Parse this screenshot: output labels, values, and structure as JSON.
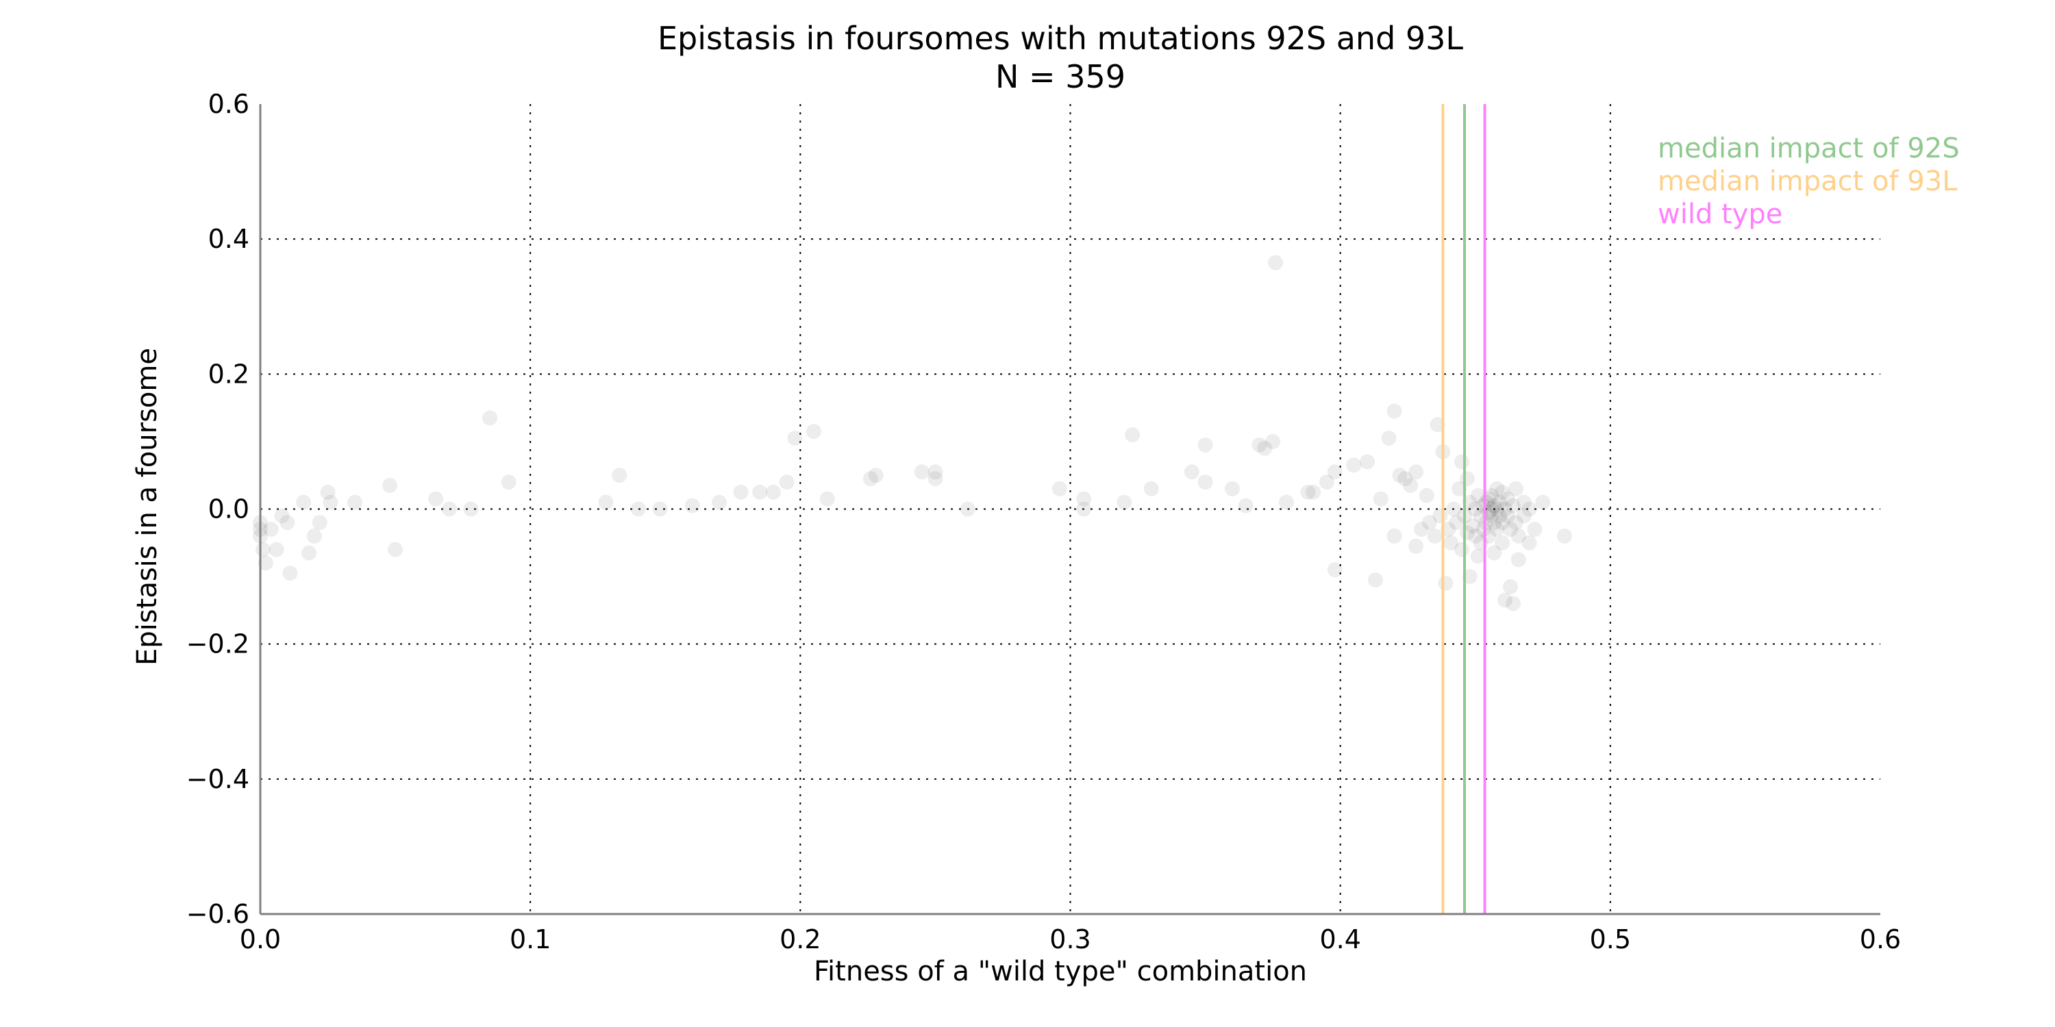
{
  "chart_data": {
    "type": "scatter",
    "title": "Epistasis in foursomes with mutations 92S and 93L",
    "subtitle": "N = 359",
    "xlabel": "Fitness of a \"wild type\" combination",
    "ylabel": "Epistasis in a foursome",
    "xlim": [
      0.0,
      0.6
    ],
    "ylim": [
      -0.6,
      0.6
    ],
    "x_ticks": [
      "0.0",
      "0.1",
      "0.2",
      "0.3",
      "0.4",
      "0.5",
      "0.6"
    ],
    "y_ticks": [
      "0.6",
      "0.4",
      "0.2",
      "0.0",
      "−0.2",
      "−0.4",
      "−0.6"
    ],
    "grid": true,
    "legend_position": "top-right",
    "vertical_lines": [
      {
        "name": "median impact of 92S",
        "x": 0.446,
        "color": "#8fc98f"
      },
      {
        "name": "median impact of 93L",
        "x": 0.438,
        "color": "#ffd08a"
      },
      {
        "name": "wild type",
        "x": 0.4535,
        "color": "#ff80ff"
      }
    ],
    "point_color": "#000000",
    "point_opacity": 0.07,
    "points": [
      [
        0.0,
        -0.03
      ],
      [
        0.0,
        -0.04
      ],
      [
        0.0,
        -0.02
      ],
      [
        0.001,
        -0.06
      ],
      [
        0.002,
        -0.08
      ],
      [
        0.004,
        -0.03
      ],
      [
        0.006,
        -0.06
      ],
      [
        0.008,
        -0.01
      ],
      [
        0.01,
        -0.02
      ],
      [
        0.011,
        -0.095
      ],
      [
        0.016,
        0.01
      ],
      [
        0.018,
        -0.065
      ],
      [
        0.02,
        -0.04
      ],
      [
        0.022,
        -0.02
      ],
      [
        0.025,
        0.025
      ],
      [
        0.026,
        0.01
      ],
      [
        0.035,
        0.01
      ],
      [
        0.048,
        0.035
      ],
      [
        0.05,
        -0.06
      ],
      [
        0.065,
        0.015
      ],
      [
        0.07,
        0.0
      ],
      [
        0.078,
        0.0
      ],
      [
        0.085,
        0.135
      ],
      [
        0.092,
        0.04
      ],
      [
        0.128,
        0.01
      ],
      [
        0.133,
        0.05
      ],
      [
        0.14,
        0.0
      ],
      [
        0.148,
        0.0
      ],
      [
        0.16,
        0.005
      ],
      [
        0.17,
        0.01
      ],
      [
        0.178,
        0.025
      ],
      [
        0.185,
        0.025
      ],
      [
        0.19,
        0.025
      ],
      [
        0.195,
        0.04
      ],
      [
        0.198,
        0.105
      ],
      [
        0.205,
        0.115
      ],
      [
        0.21,
        0.015
      ],
      [
        0.226,
        0.045
      ],
      [
        0.228,
        0.05
      ],
      [
        0.245,
        0.055
      ],
      [
        0.25,
        0.045
      ],
      [
        0.25,
        0.055
      ],
      [
        0.262,
        0.0
      ],
      [
        0.296,
        0.03
      ],
      [
        0.305,
        0.0
      ],
      [
        0.305,
        0.015
      ],
      [
        0.32,
        0.01
      ],
      [
        0.323,
        0.11
      ],
      [
        0.33,
        0.03
      ],
      [
        0.345,
        0.055
      ],
      [
        0.35,
        0.095
      ],
      [
        0.35,
        0.04
      ],
      [
        0.36,
        0.03
      ],
      [
        0.365,
        0.005
      ],
      [
        0.37,
        0.095
      ],
      [
        0.372,
        0.09
      ],
      [
        0.375,
        0.1
      ],
      [
        0.376,
        0.365
      ],
      [
        0.38,
        0.01
      ],
      [
        0.388,
        0.025
      ],
      [
        0.39,
        0.025
      ],
      [
        0.395,
        0.04
      ],
      [
        0.398,
        0.055
      ],
      [
        0.398,
        -0.09
      ],
      [
        0.405,
        0.065
      ],
      [
        0.41,
        0.07
      ],
      [
        0.413,
        -0.105
      ],
      [
        0.415,
        0.015
      ],
      [
        0.418,
        0.105
      ],
      [
        0.42,
        0.145
      ],
      [
        0.42,
        -0.04
      ],
      [
        0.422,
        0.05
      ],
      [
        0.424,
        0.045
      ],
      [
        0.426,
        0.035
      ],
      [
        0.428,
        0.055
      ],
      [
        0.428,
        -0.055
      ],
      [
        0.43,
        -0.03
      ],
      [
        0.432,
        0.02
      ],
      [
        0.433,
        -0.02
      ],
      [
        0.435,
        -0.04
      ],
      [
        0.436,
        0.125
      ],
      [
        0.437,
        -0.01
      ],
      [
        0.438,
        0.085
      ],
      [
        0.439,
        -0.11
      ],
      [
        0.44,
        -0.03
      ],
      [
        0.441,
        -0.05
      ],
      [
        0.442,
        0.0
      ],
      [
        0.443,
        -0.02
      ],
      [
        0.444,
        0.03
      ],
      [
        0.445,
        -0.06
      ],
      [
        0.445,
        0.07
      ],
      [
        0.446,
        -0.01
      ],
      [
        0.447,
        -0.035
      ],
      [
        0.447,
        0.045
      ],
      [
        0.448,
        -0.1
      ],
      [
        0.448,
        0.01
      ],
      [
        0.449,
        -0.025
      ],
      [
        0.45,
        -0.04
      ],
      [
        0.45,
        0.0
      ],
      [
        0.451,
        -0.07
      ],
      [
        0.451,
        0.02
      ],
      [
        0.452,
        -0.05
      ],
      [
        0.452,
        -0.01
      ],
      [
        0.453,
        0.005
      ],
      [
        0.453,
        -0.03
      ],
      [
        0.454,
        -0.02
      ],
      [
        0.454,
        0.01
      ],
      [
        0.455,
        -0.005
      ],
      [
        0.455,
        0.015
      ],
      [
        0.455,
        -0.04
      ],
      [
        0.456,
        0.0
      ],
      [
        0.456,
        -0.01
      ],
      [
        0.456,
        0.02
      ],
      [
        0.457,
        -0.02
      ],
      [
        0.457,
        0.005
      ],
      [
        0.457,
        -0.065
      ],
      [
        0.458,
        0.0
      ],
      [
        0.458,
        0.03
      ],
      [
        0.458,
        -0.03
      ],
      [
        0.459,
        -0.01
      ],
      [
        0.459,
        0.01
      ],
      [
        0.46,
        -0.02
      ],
      [
        0.46,
        0.025
      ],
      [
        0.46,
        -0.05
      ],
      [
        0.461,
        -0.135
      ],
      [
        0.461,
        0.0
      ],
      [
        0.462,
        -0.01
      ],
      [
        0.462,
        0.015
      ],
      [
        0.463,
        -0.03
      ],
      [
        0.463,
        -0.115
      ],
      [
        0.464,
        -0.14
      ],
      [
        0.464,
        0.005
      ],
      [
        0.465,
        -0.02
      ],
      [
        0.465,
        0.03
      ],
      [
        0.466,
        -0.04
      ],
      [
        0.466,
        -0.075
      ],
      [
        0.468,
        0.01
      ],
      [
        0.468,
        -0.01
      ],
      [
        0.47,
        -0.05
      ],
      [
        0.47,
        0.0
      ],
      [
        0.472,
        -0.03
      ],
      [
        0.475,
        0.01
      ],
      [
        0.483,
        -0.04
      ]
    ]
  }
}
